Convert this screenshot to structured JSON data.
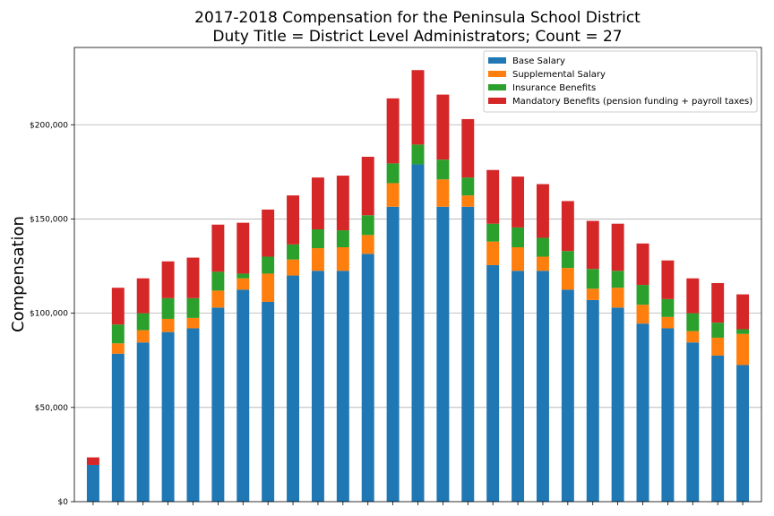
{
  "chart_data": {
    "type": "bar",
    "stacked": true,
    "title": [
      "2017-2018 Compensation for the Peninsula School District",
      "Duty Title = District Level Administrators; Count = 27"
    ],
    "xlabel": "",
    "ylabel": "Compensation",
    "ylim": [
      0,
      241000
    ],
    "yticks": [
      0,
      50000,
      100000,
      150000,
      200000
    ],
    "ytick_labels": [
      "$0",
      "$50,000",
      "$100,000",
      "$150,000",
      "$200,000"
    ],
    "grid": "y",
    "legend_position": "top-right",
    "colors": [
      "#1f77b4",
      "#ff7f0e",
      "#2ca02c",
      "#d62728"
    ],
    "series": [
      {
        "name": "Base Salary",
        "values": [
          19500,
          78500,
          84500,
          90000,
          92000,
          103000,
          112500,
          106000,
          120000,
          122500,
          122500,
          131500,
          156500,
          179000,
          156500,
          156500,
          125500,
          122500,
          122500,
          112500,
          107000,
          103000,
          94500,
          92000,
          84500,
          77500,
          72500
        ]
      },
      {
        "name": "Supplemental Salary",
        "values": [
          0,
          5500,
          6500,
          7000,
          5500,
          9000,
          6000,
          15000,
          8500,
          12000,
          12500,
          10000,
          12500,
          0,
          14500,
          6000,
          12500,
          12500,
          7500,
          11500,
          6000,
          10500,
          10000,
          6000,
          6000,
          9500,
          16500
        ]
      },
      {
        "name": "Insurance Benefits",
        "values": [
          0,
          10000,
          9000,
          11000,
          10500,
          10000,
          2500,
          9000,
          8000,
          10000,
          9000,
          10500,
          10500,
          10500,
          10500,
          9500,
          9500,
          10500,
          10000,
          9000,
          10500,
          9000,
          10500,
          9500,
          9500,
          8000,
          2500
        ]
      },
      {
        "name": "Mandatory Benefits (pension funding + payroll taxes)",
        "values": [
          4000,
          19500,
          18500,
          19500,
          21500,
          25000,
          27000,
          25000,
          26000,
          27500,
          29000,
          31000,
          34500,
          39500,
          34500,
          31000,
          28500,
          27000,
          28500,
          26500,
          25500,
          25000,
          22000,
          20500,
          18500,
          21000,
          18500
        ]
      }
    ]
  }
}
